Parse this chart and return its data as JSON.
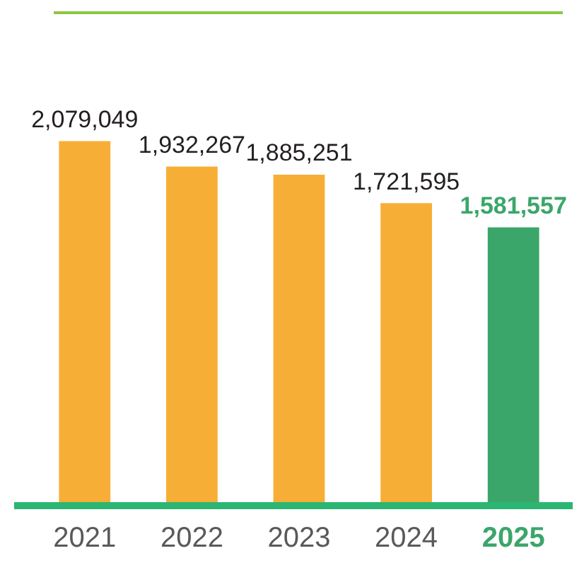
{
  "chart_data": {
    "type": "bar",
    "categories": [
      "2021",
      "2022",
      "2023",
      "2024",
      "2025"
    ],
    "values": [
      2079049,
      1932267,
      1885251,
      1721595,
      1581557
    ],
    "colors": [
      "#f7ae37",
      "#f7ae37",
      "#f7ae37",
      "#f7ae37",
      "#3ba66a"
    ],
    "value_labels": [
      "2,079,049",
      "1,932,267",
      "1,885,251",
      "1,721,595",
      "1,581,557"
    ],
    "grid": false,
    "legend": false
  }
}
